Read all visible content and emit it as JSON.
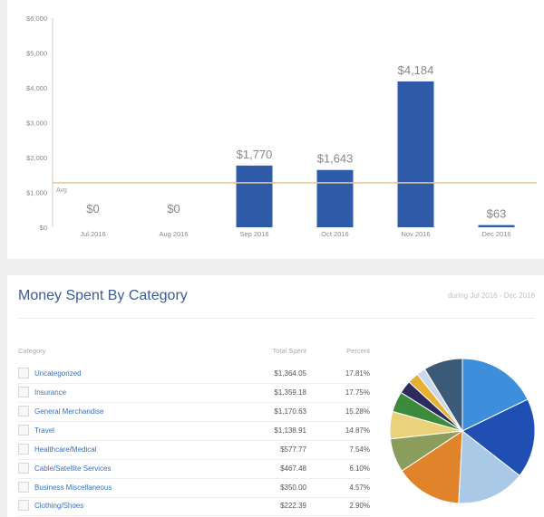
{
  "chart_data": {
    "type": "bar",
    "categories": [
      "Jul 2016",
      "Aug 2016",
      "Sep 2016",
      "Oct 2016",
      "Nov 2016",
      "Dec 2016"
    ],
    "values": [
      0,
      0,
      1770,
      1643,
      4184,
      63
    ],
    "value_labels": [
      "$0",
      "$0",
      "$1,770",
      "$1,643",
      "$4,184",
      "$63"
    ],
    "y_ticks": [
      "$0",
      "$1,000",
      "$2,000",
      "$3,000",
      "$4,000",
      "$5,000",
      "$6,000"
    ],
    "ylim": [
      0,
      6000
    ],
    "average": {
      "label": "Avg",
      "value": 1277
    },
    "grid": false,
    "colors": {
      "bar": "#2f5aa8",
      "avg_line": "#f2c28a",
      "axis": "#cccccc"
    }
  },
  "category_card": {
    "title": "Money Spent By Category",
    "subtitle": "during Jul 2016 - Dec 2016",
    "columns": {
      "category": "Category",
      "total": "Total Spent",
      "percent": "Percent"
    },
    "rows": [
      {
        "category": "Uncategorized",
        "total": "$1,364.05",
        "percent": "17.81%"
      },
      {
        "category": "Insurance",
        "total": "$1,359.18",
        "percent": "17.75%"
      },
      {
        "category": "General Merchandise",
        "total": "$1,170.63",
        "percent": "15.28%"
      },
      {
        "category": "Travel",
        "total": "$1,138.91",
        "percent": "14.87%"
      },
      {
        "category": "Healthcare/Medical",
        "total": "$577.77",
        "percent": "7.54%"
      },
      {
        "category": "Cable/Satellite Services",
        "total": "$467.48",
        "percent": "6.10%"
      },
      {
        "category": "Business Miscellaneous",
        "total": "$350.00",
        "percent": "4.57%"
      },
      {
        "category": "Clothing/Shoes",
        "total": "$222.39",
        "percent": "2.90%"
      }
    ]
  },
  "pie_data": {
    "type": "pie",
    "values": [
      17.81,
      17.75,
      15.28,
      14.87,
      7.54,
      6.1,
      4.57,
      2.9,
      2.5,
      2.0,
      8.68
    ],
    "colors": [
      "#3d8fdb",
      "#1f4fb2",
      "#a9c9e6",
      "#e0832a",
      "#8a9d5c",
      "#ead17a",
      "#3c8a3c",
      "#2c2a5e",
      "#e8b030",
      "#c9d8ea",
      "#3b5a78"
    ]
  }
}
